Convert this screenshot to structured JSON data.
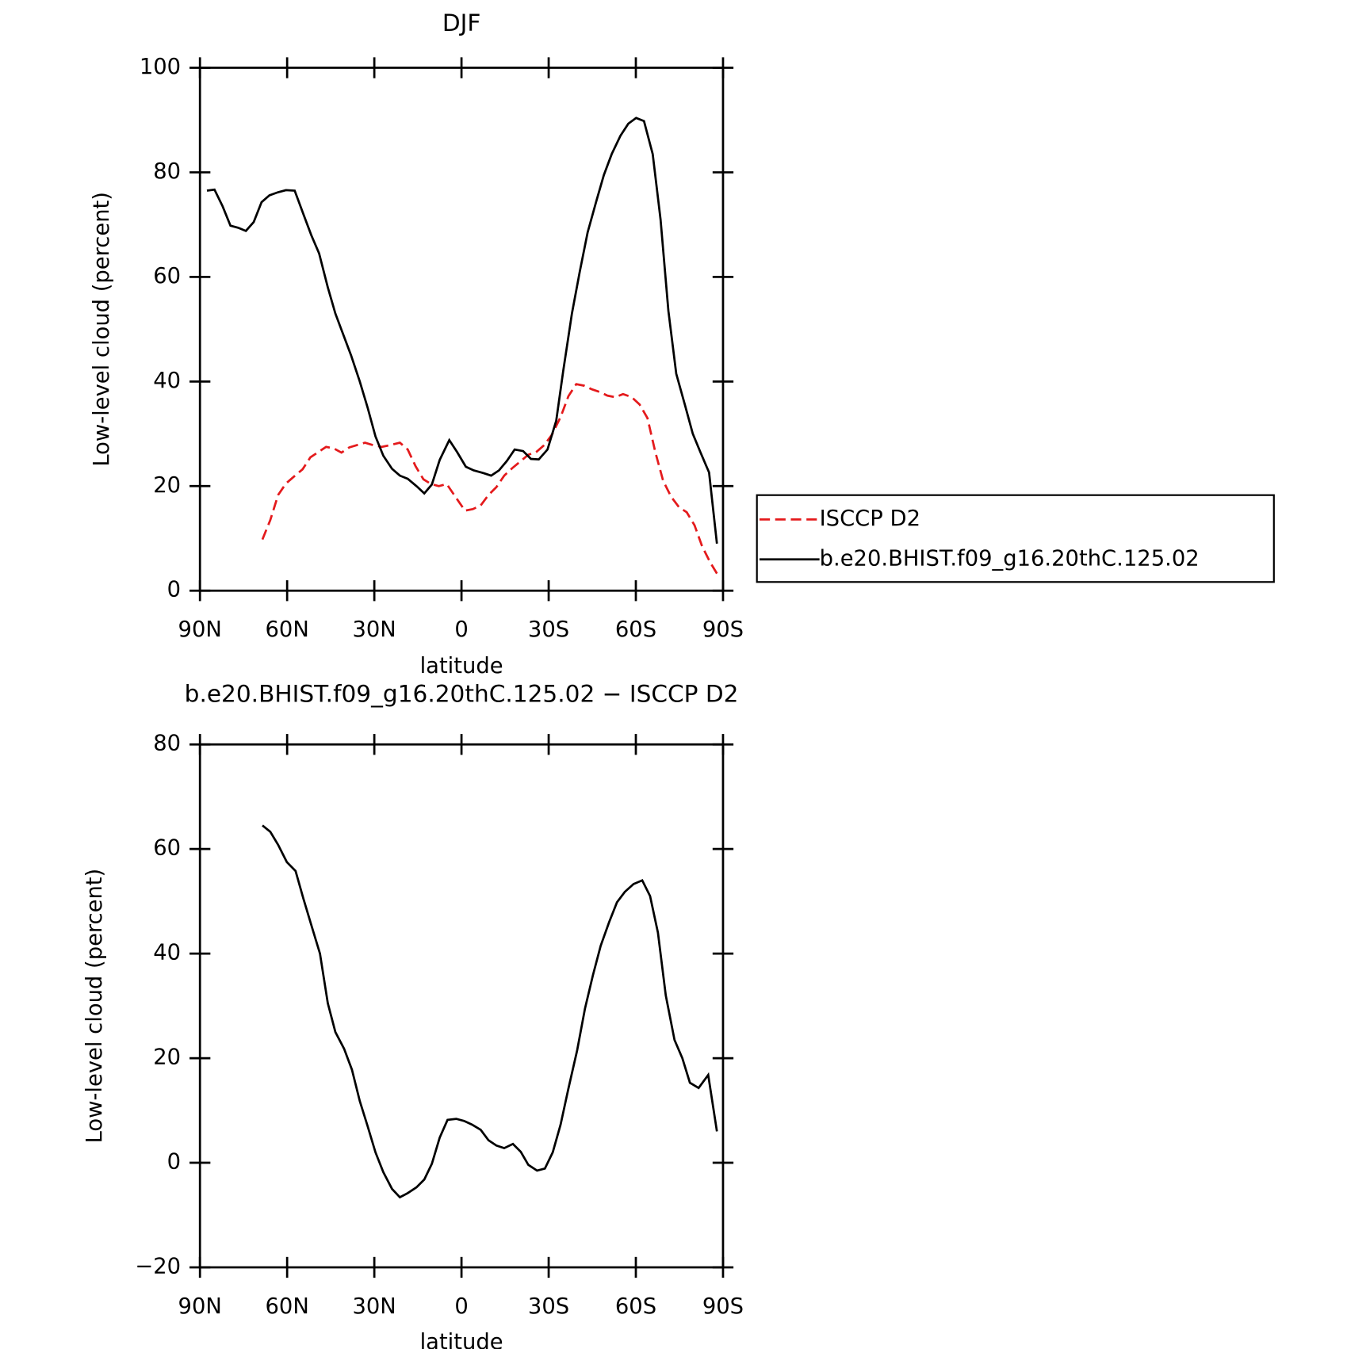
{
  "chart_data": [
    {
      "type": "line",
      "title": "DJF",
      "x_label": "latitude",
      "y_label": "Low-level cloud (percent)",
      "xlim": [
        90,
        -90
      ],
      "xticks": [
        {
          "value": 90,
          "label": "90N"
        },
        {
          "value": 60,
          "label": "60N"
        },
        {
          "value": 30,
          "label": "30N"
        },
        0,
        {
          "value": -30,
          "label": "30S"
        },
        {
          "value": -60,
          "label": "60S"
        },
        {
          "value": -90,
          "label": "90S"
        }
      ],
      "ylim": [
        0,
        100
      ],
      "yticks": [
        0,
        20,
        40,
        60,
        80,
        100
      ],
      "legend": "right",
      "series": [
        {
          "name": "ISCCP D2",
          "color": "#e41a1c",
          "dash": "dashed",
          "x": [
            68.5,
            65.8,
            63.1,
            60.4,
            57.7,
            54.7,
            52,
            46.6,
            43.9,
            41.3,
            38.6,
            33.2,
            30.2,
            27.5,
            24.8,
            21.2,
            18.5,
            15.8,
            13.1,
            10.5,
            7.8,
            5.1,
            2.4,
            -1.2,
            -3.9,
            -6.6,
            -9.3,
            -12,
            -14.7,
            -17.4,
            -20,
            -23,
            -25.7,
            -28.4,
            -31.1,
            -34.1,
            -36.8,
            -39.5,
            -42.2,
            -44.9,
            -47.6,
            -50.2,
            -52.9,
            -55.6,
            -58.6,
            -61.3,
            -64,
            -66.7,
            -69.4,
            -72.1,
            -74.8,
            -77.5,
            -80.2,
            -82.8,
            -85.5,
            -88.2
          ],
          "values": [
            9.8,
            13.5,
            18.3,
            20.5,
            21.8,
            23.2,
            25.5,
            27.5,
            27.2,
            26.4,
            27.4,
            28.3,
            27.8,
            27.5,
            27.8,
            28.3,
            27,
            23.8,
            21.3,
            20.4,
            20,
            20.4,
            18.2,
            15.3,
            15.6,
            16.3,
            18.3,
            19.8,
            22,
            23.4,
            24.6,
            26,
            26.5,
            27.8,
            29.8,
            33.2,
            37.2,
            39.5,
            39.2,
            38.5,
            38,
            37.3,
            37,
            37.6,
            37,
            35.6,
            33,
            26.5,
            21,
            18,
            16,
            15,
            12.5,
            8.5,
            5.5,
            3
          ]
        },
        {
          "name": "b.e20.BHIST.f09_g16.20thC.125.02",
          "color": "#000000",
          "dash": "solid",
          "x": [
            87.6,
            85,
            82.2,
            79.5,
            76.8,
            74.2,
            71.5,
            68.8,
            66.1,
            63.1,
            60.4,
            57.4,
            54.4,
            51.7,
            49,
            46,
            43.4,
            40.7,
            38,
            35,
            32.3,
            29.6,
            26.9,
            23.9,
            21.2,
            18.5,
            15.5,
            12.8,
            10.2,
            7.5,
            4.2,
            1.5,
            -1.5,
            -4.2,
            -7.5,
            -10.2,
            -12.9,
            -15.6,
            -18.3,
            -21.2,
            -23.9,
            -26.6,
            -29.6,
            -32.6,
            -35,
            -38,
            -40.7,
            -43.4,
            -46.4,
            -49,
            -51.7,
            -54.7,
            -57.4,
            -60.1,
            -62.8,
            -65.8,
            -68.5,
            -71.2,
            -73.9,
            -76.9,
            -79.6,
            -82.2,
            -85.2,
            -87.9
          ],
          "values": [
            76.5,
            76.7,
            73.5,
            69.8,
            69.4,
            68.8,
            70.5,
            74.3,
            75.6,
            76.2,
            76.6,
            76.5,
            72,
            68,
            64.5,
            58,
            53,
            49,
            45,
            40,
            35,
            29.5,
            25.8,
            23.3,
            22,
            21.4,
            20,
            18.6,
            20.3,
            25,
            28.8,
            26.5,
            23.7,
            23,
            22.5,
            22,
            23,
            24.8,
            27,
            26.7,
            25.2,
            25.1,
            27,
            32.5,
            42,
            53,
            61,
            68.5,
            74.5,
            79.5,
            83.5,
            87,
            89.3,
            90.4,
            89.8,
            83.5,
            71,
            53.5,
            41.5,
            35.5,
            30,
            26.5,
            22.6,
            9
          ]
        }
      ]
    },
    {
      "type": "line",
      "title": "b.e20.BHIST.f09_g16.20thC.125.02 − ISCCP D2",
      "x_label": "latitude",
      "y_label": "Low-level cloud (percent)",
      "xlim": [
        90,
        -90
      ],
      "xticks": [
        {
          "value": 90,
          "label": "90N"
        },
        {
          "value": 60,
          "label": "60N"
        },
        {
          "value": 30,
          "label": "30N"
        },
        0,
        {
          "value": -30,
          "label": "30S"
        },
        {
          "value": -60,
          "label": "60S"
        },
        {
          "value": -90,
          "label": "90S"
        }
      ],
      "ylim": [
        -20,
        80
      ],
      "yticks": [
        {
          "value": -20,
          "label": "−20"
        },
        0,
        20,
        40,
        60,
        80
      ],
      "series": [
        {
          "color": "#000000",
          "dash": "solid",
          "x": [
            68.5,
            65.8,
            63.1,
            60.1,
            57.1,
            54.4,
            51.7,
            48.7,
            46,
            43.4,
            40.4,
            37.7,
            35,
            32.3,
            29.6,
            26.9,
            23.9,
            21.2,
            18.5,
            15.5,
            12.8,
            10.2,
            7.5,
            4.8,
            1.8,
            -0.9,
            -3.6,
            -6.6,
            -9.3,
            -12,
            -14.7,
            -17.7,
            -20.4,
            -23,
            -26,
            -28.7,
            -31.4,
            -34.1,
            -36.8,
            -39.8,
            -42.5,
            -45.2,
            -47.9,
            -50.8,
            -53.5,
            -56.2,
            -59.2,
            -62.2,
            -64.9,
            -67.6,
            -70.3,
            -73.3,
            -76,
            -78.6,
            -81.6,
            -84.9,
            -87.9
          ],
          "values": [
            64.5,
            63.3,
            60.8,
            57.5,
            55.8,
            50.5,
            45.5,
            40,
            30.5,
            25,
            21.8,
            17.8,
            11.8,
            7,
            2,
            -1.8,
            -5,
            -6.6,
            -5.8,
            -4.7,
            -3.2,
            -0.2,
            4.8,
            8.2,
            8.4,
            8,
            7.3,
            6.3,
            4.3,
            3.3,
            2.8,
            3.6,
            2.1,
            -0.4,
            -1.5,
            -1.1,
            2,
            7.3,
            14.2,
            21.5,
            29.5,
            35.8,
            41.5,
            46,
            49.8,
            51.8,
            53.3,
            54,
            51,
            44,
            32,
            23.5,
            20,
            15.3,
            14.3,
            16.8,
            6
          ]
        }
      ]
    }
  ]
}
